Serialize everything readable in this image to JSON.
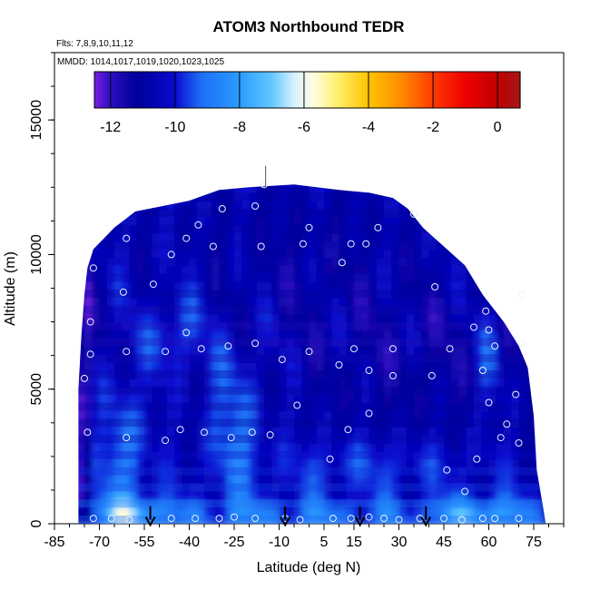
{
  "chart_data": {
    "type": "heatmap",
    "title": "ATOM3 Northbound TEDR",
    "flights_note": "Flts: 7,8,9,10,11,12",
    "dates_note": "MMDD: 1014,1017,1019,1020,1023,1025",
    "xlabel": "Latitude (deg N)",
    "ylabel": "Altitude (m)",
    "xlim": [
      -85,
      85
    ],
    "ylim": [
      0,
      17500
    ],
    "x_ticks": [
      -85,
      -70,
      -55,
      -40,
      -25,
      -10,
      5,
      15,
      30,
      45,
      60,
      75
    ],
    "y_ticks": [
      0,
      5000,
      10000,
      15000
    ],
    "colorbar": {
      "range": [
        -12.5,
        0.7
      ],
      "ticks": [
        -12,
        -10,
        -8,
        -6,
        -4,
        -2,
        0
      ],
      "gradient": [
        {
          "v": -12.5,
          "c": "#7a1fe0"
        },
        {
          "v": -12.0,
          "c": "#2a0fc0"
        },
        {
          "v": -11.2,
          "c": "#00009a"
        },
        {
          "v": -10.0,
          "c": "#0a0ad0"
        },
        {
          "v": -9.2,
          "c": "#1e6ef5"
        },
        {
          "v": -8.0,
          "c": "#2a9cff"
        },
        {
          "v": -7.0,
          "c": "#64c6ff"
        },
        {
          "v": -6.3,
          "c": "#d8f2ff"
        },
        {
          "v": -5.7,
          "c": "#fffde0"
        },
        {
          "v": -5.0,
          "c": "#fff070"
        },
        {
          "v": -4.0,
          "c": "#ffc400"
        },
        {
          "v": -3.0,
          "c": "#ff8c00"
        },
        {
          "v": -2.0,
          "c": "#ff3a00"
        },
        {
          "v": -1.0,
          "c": "#ee0000"
        },
        {
          "v": 0.0,
          "c": "#c00000"
        },
        {
          "v": 0.7,
          "c": "#a41818"
        }
      ]
    },
    "envelope": [
      [
        -77,
        5000
      ],
      [
        -76,
        7000
      ],
      [
        -75,
        8500
      ],
      [
        -74,
        9500
      ],
      [
        -72,
        10200
      ],
      [
        -65,
        11000
      ],
      [
        -58,
        11600
      ],
      [
        -40,
        12000
      ],
      [
        -30,
        12400
      ],
      [
        -20,
        12500
      ],
      [
        -5,
        12600
      ],
      [
        10,
        12400
      ],
      [
        20,
        12300
      ],
      [
        28,
        12100
      ],
      [
        33,
        11700
      ],
      [
        38,
        11000
      ],
      [
        45,
        10300
      ],
      [
        52,
        9600
      ],
      [
        58,
        8500
      ],
      [
        65,
        7500
      ],
      [
        70,
        6600
      ],
      [
        73,
        5800
      ],
      [
        75,
        4000
      ],
      [
        76,
        2000
      ],
      [
        78,
        700
      ],
      [
        79,
        0
      ]
    ],
    "arrows_lat": [
      -53,
      -8,
      17,
      39
    ],
    "profile_points": [
      [
        -72,
        200
      ],
      [
        -66,
        200
      ],
      [
        -60,
        150
      ],
      [
        -46,
        200
      ],
      [
        -38,
        200
      ],
      [
        -30,
        200
      ],
      [
        -25,
        250
      ],
      [
        -18,
        200
      ],
      [
        -8,
        200
      ],
      [
        -3,
        150
      ],
      [
        8,
        200
      ],
      [
        14,
        200
      ],
      [
        20,
        250
      ],
      [
        25,
        200
      ],
      [
        30,
        150
      ],
      [
        37,
        200
      ],
      [
        45,
        200
      ],
      [
        51,
        150
      ],
      [
        58,
        200
      ],
      [
        62,
        200
      ],
      [
        70,
        200
      ],
      [
        -74,
        3400
      ],
      [
        -61,
        3200
      ],
      [
        -48,
        3100
      ],
      [
        -43,
        3500
      ],
      [
        -35,
        3400
      ],
      [
        -26,
        3200
      ],
      [
        -19,
        3400
      ],
      [
        -13,
        3300
      ],
      [
        -4,
        4400
      ],
      [
        7,
        2400
      ],
      [
        13,
        3500
      ],
      [
        20,
        4100
      ],
      [
        46,
        2000
      ],
      [
        56,
        2400
      ],
      [
        60,
        4500
      ],
      [
        64,
        3200
      ],
      [
        66,
        3700
      ],
      [
        69,
        4800
      ],
      [
        70,
        3000
      ],
      [
        52,
        1200
      ],
      [
        28,
        5500
      ],
      [
        -75,
        5400
      ],
      [
        -73,
        6300
      ],
      [
        -61,
        6400
      ],
      [
        -48,
        6400
      ],
      [
        -36,
        6500
      ],
      [
        -27,
        6600
      ],
      [
        -18,
        6700
      ],
      [
        -9,
        6100
      ],
      [
        0,
        6400
      ],
      [
        10,
        5900
      ],
      [
        15,
        6500
      ],
      [
        20,
        5700
      ],
      [
        28,
        6500
      ],
      [
        41,
        5500
      ],
      [
        47,
        6500
      ],
      [
        58,
        5700
      ],
      [
        60,
        7200
      ],
      [
        62,
        6600
      ],
      [
        71,
        6700
      ],
      [
        55,
        7300
      ],
      [
        -73,
        7500
      ],
      [
        -62,
        8600
      ],
      [
        -52,
        8900
      ],
      [
        -41,
        7100
      ],
      [
        -32,
        10300
      ],
      [
        -18,
        11800
      ],
      [
        -29,
        11700
      ],
      [
        -2,
        10400
      ],
      [
        -16,
        10300
      ],
      [
        0,
        11000
      ],
      [
        11,
        9700
      ],
      [
        14,
        10400
      ],
      [
        19,
        10400
      ],
      [
        23,
        11000
      ],
      [
        35,
        11500
      ],
      [
        42,
        8800
      ],
      [
        59,
        7900
      ],
      [
        71,
        8500
      ],
      [
        -72,
        9500
      ],
      [
        -61,
        10600
      ],
      [
        -46,
        10000
      ],
      [
        -41,
        10600
      ],
      [
        -37,
        11100
      ],
      [
        -15,
        12600
      ]
    ]
  }
}
